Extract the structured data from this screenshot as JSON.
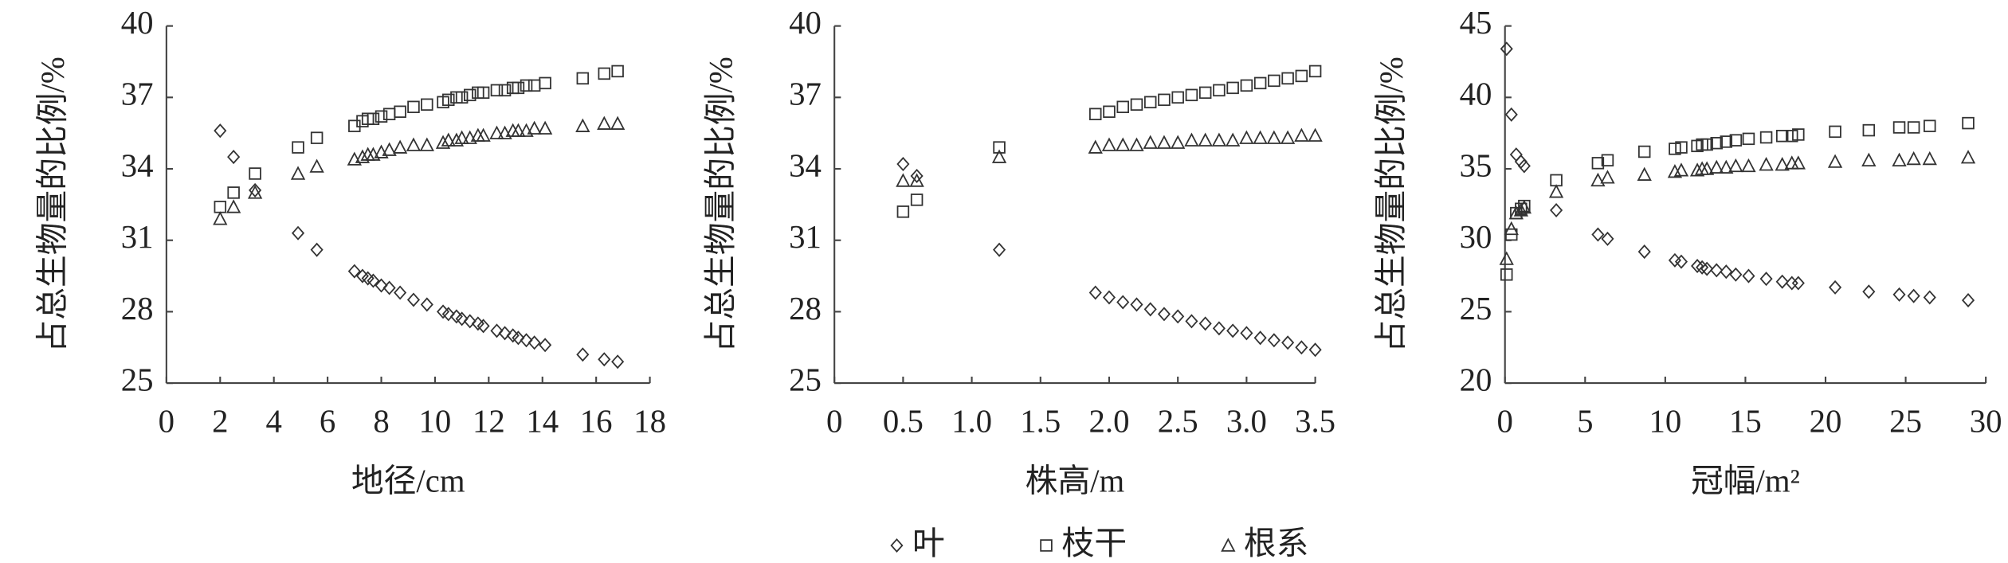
{
  "chart_data": [
    {
      "type": "scatter",
      "xlabel": "地径/cm",
      "ylabel": "占总生物量的比例/%",
      "xlim": [
        0,
        18
      ],
      "xticks": [
        0,
        2,
        4,
        6,
        8,
        10,
        12,
        14,
        16,
        18
      ],
      "ylim": [
        25,
        40
      ],
      "yticks": [
        25,
        28,
        31,
        34,
        37,
        40
      ],
      "x": [
        2.0,
        2.5,
        3.3,
        4.9,
        5.6,
        7.0,
        7.3,
        7.5,
        7.7,
        8.0,
        8.3,
        8.7,
        9.2,
        9.7,
        10.3,
        10.5,
        10.8,
        11.0,
        11.3,
        11.6,
        11.8,
        12.3,
        12.6,
        12.9,
        13.1,
        13.4,
        13.7,
        14.1,
        15.5,
        16.3,
        16.8
      ],
      "series": [
        {
          "name": "叶",
          "marker": "diamond",
          "color": "#333333",
          "values": [
            35.6,
            34.5,
            33.1,
            31.3,
            30.6,
            29.7,
            29.5,
            29.4,
            29.3,
            29.1,
            29.0,
            28.8,
            28.5,
            28.3,
            28.0,
            27.9,
            27.8,
            27.7,
            27.6,
            27.5,
            27.4,
            27.2,
            27.1,
            27.0,
            26.9,
            26.8,
            26.7,
            26.6,
            26.2,
            26.0,
            25.9
          ]
        },
        {
          "name": "枝干",
          "marker": "square",
          "color": "#333333",
          "values": [
            32.4,
            33.0,
            33.8,
            34.9,
            35.3,
            35.8,
            36.0,
            36.1,
            36.1,
            36.2,
            36.3,
            36.4,
            36.6,
            36.7,
            36.8,
            36.9,
            37.0,
            37.0,
            37.1,
            37.2,
            37.2,
            37.3,
            37.3,
            37.4,
            37.4,
            37.5,
            37.5,
            37.6,
            37.8,
            38.0,
            38.1
          ]
        },
        {
          "name": "根系",
          "marker": "triangle",
          "color": "#333333",
          "values": [
            31.9,
            32.4,
            33.0,
            33.8,
            34.1,
            34.4,
            34.5,
            34.6,
            34.6,
            34.7,
            34.8,
            34.9,
            35.0,
            35.0,
            35.1,
            35.2,
            35.2,
            35.3,
            35.3,
            35.4,
            35.4,
            35.5,
            35.5,
            35.6,
            35.6,
            35.6,
            35.7,
            35.7,
            35.8,
            35.9,
            35.9
          ]
        }
      ],
      "legend": "bottom"
    },
    {
      "type": "scatter",
      "xlabel": "株高/m",
      "ylabel": "占总生物量的比例/%",
      "xlim": [
        0,
        3.5
      ],
      "xticks": [
        0,
        0.5,
        {
          "value": 1,
          "label": "1.0"
        },
        1.5,
        {
          "value": 2,
          "label": "2.0"
        },
        2.5,
        {
          "value": 3,
          "label": "3.0"
        },
        3.5
      ],
      "ylim": [
        25,
        40
      ],
      "yticks": [
        25,
        28,
        31,
        34,
        37,
        40
      ],
      "x": [
        0.5,
        0.6,
        1.2,
        1.9,
        2.0,
        2.1,
        2.2,
        2.3,
        2.4,
        2.5,
        2.6,
        2.7,
        2.8,
        2.9,
        3.0,
        3.1,
        3.2,
        3.3,
        3.4,
        3.5
      ],
      "series": [
        {
          "name": "叶",
          "marker": "diamond",
          "color": "#333333",
          "values": [
            34.2,
            33.7,
            30.6,
            28.8,
            28.6,
            28.4,
            28.3,
            28.1,
            27.9,
            27.8,
            27.6,
            27.5,
            27.3,
            27.2,
            27.1,
            26.9,
            26.8,
            26.7,
            26.5,
            26.4
          ]
        },
        {
          "name": "枝干",
          "marker": "square",
          "color": "#333333",
          "values": [
            32.2,
            32.7,
            34.9,
            36.3,
            36.4,
            36.6,
            36.7,
            36.8,
            36.9,
            37.0,
            37.1,
            37.2,
            37.3,
            37.4,
            37.5,
            37.6,
            37.7,
            37.8,
            37.9,
            38.1
          ]
        },
        {
          "name": "根系",
          "marker": "triangle",
          "color": "#333333",
          "values": [
            33.5,
            33.5,
            34.5,
            34.9,
            35.0,
            35.0,
            35.0,
            35.1,
            35.1,
            35.1,
            35.2,
            35.2,
            35.2,
            35.2,
            35.3,
            35.3,
            35.3,
            35.3,
            35.4,
            35.4
          ]
        }
      ],
      "legend": "bottom"
    },
    {
      "type": "scatter",
      "xlabel": "冠幅/m²",
      "ylabel": "占总生物量的比例/%",
      "xlim": [
        0,
        30
      ],
      "xticks": [
        0,
        5,
        10,
        15,
        20,
        25,
        30
      ],
      "ylim": [
        20,
        45
      ],
      "yticks": [
        20,
        25,
        30,
        35,
        40,
        45
      ],
      "x": [
        0.1,
        0.4,
        0.7,
        1.0,
        1.2,
        3.2,
        5.8,
        6.4,
        8.7,
        10.6,
        11.0,
        12.0,
        12.3,
        12.6,
        13.2,
        13.8,
        14.4,
        15.2,
        16.3,
        17.3,
        17.9,
        18.3,
        20.6,
        22.7,
        24.6,
        25.5,
        26.5,
        28.9
      ],
      "series": [
        {
          "name": "叶",
          "marker": "diamond",
          "color": "#333333",
          "values": [
            43.4,
            38.8,
            36.0,
            35.5,
            35.2,
            32.1,
            30.4,
            30.1,
            29.2,
            28.6,
            28.5,
            28.2,
            28.1,
            28.0,
            27.9,
            27.8,
            27.6,
            27.5,
            27.3,
            27.1,
            27.0,
            27.0,
            26.7,
            26.4,
            26.2,
            26.1,
            26.0,
            25.8
          ]
        },
        {
          "name": "枝干",
          "marker": "square",
          "color": "#333333",
          "values": [
            27.6,
            30.4,
            31.9,
            32.2,
            32.4,
            34.2,
            35.4,
            35.6,
            36.2,
            36.4,
            36.5,
            36.6,
            36.7,
            36.7,
            36.8,
            36.9,
            37.0,
            37.1,
            37.2,
            37.3,
            37.3,
            37.4,
            37.6,
            37.7,
            37.9,
            37.9,
            38.0,
            38.2
          ]
        },
        {
          "name": "根系",
          "marker": "triangle",
          "color": "#333333",
          "values": [
            28.7,
            30.8,
            31.9,
            32.1,
            32.3,
            33.4,
            34.2,
            34.4,
            34.6,
            34.8,
            34.9,
            34.9,
            35.0,
            35.0,
            35.1,
            35.1,
            35.2,
            35.2,
            35.3,
            35.3,
            35.4,
            35.4,
            35.5,
            35.6,
            35.6,
            35.7,
            35.7,
            35.8
          ]
        }
      ],
      "legend": "bottom"
    }
  ]
}
